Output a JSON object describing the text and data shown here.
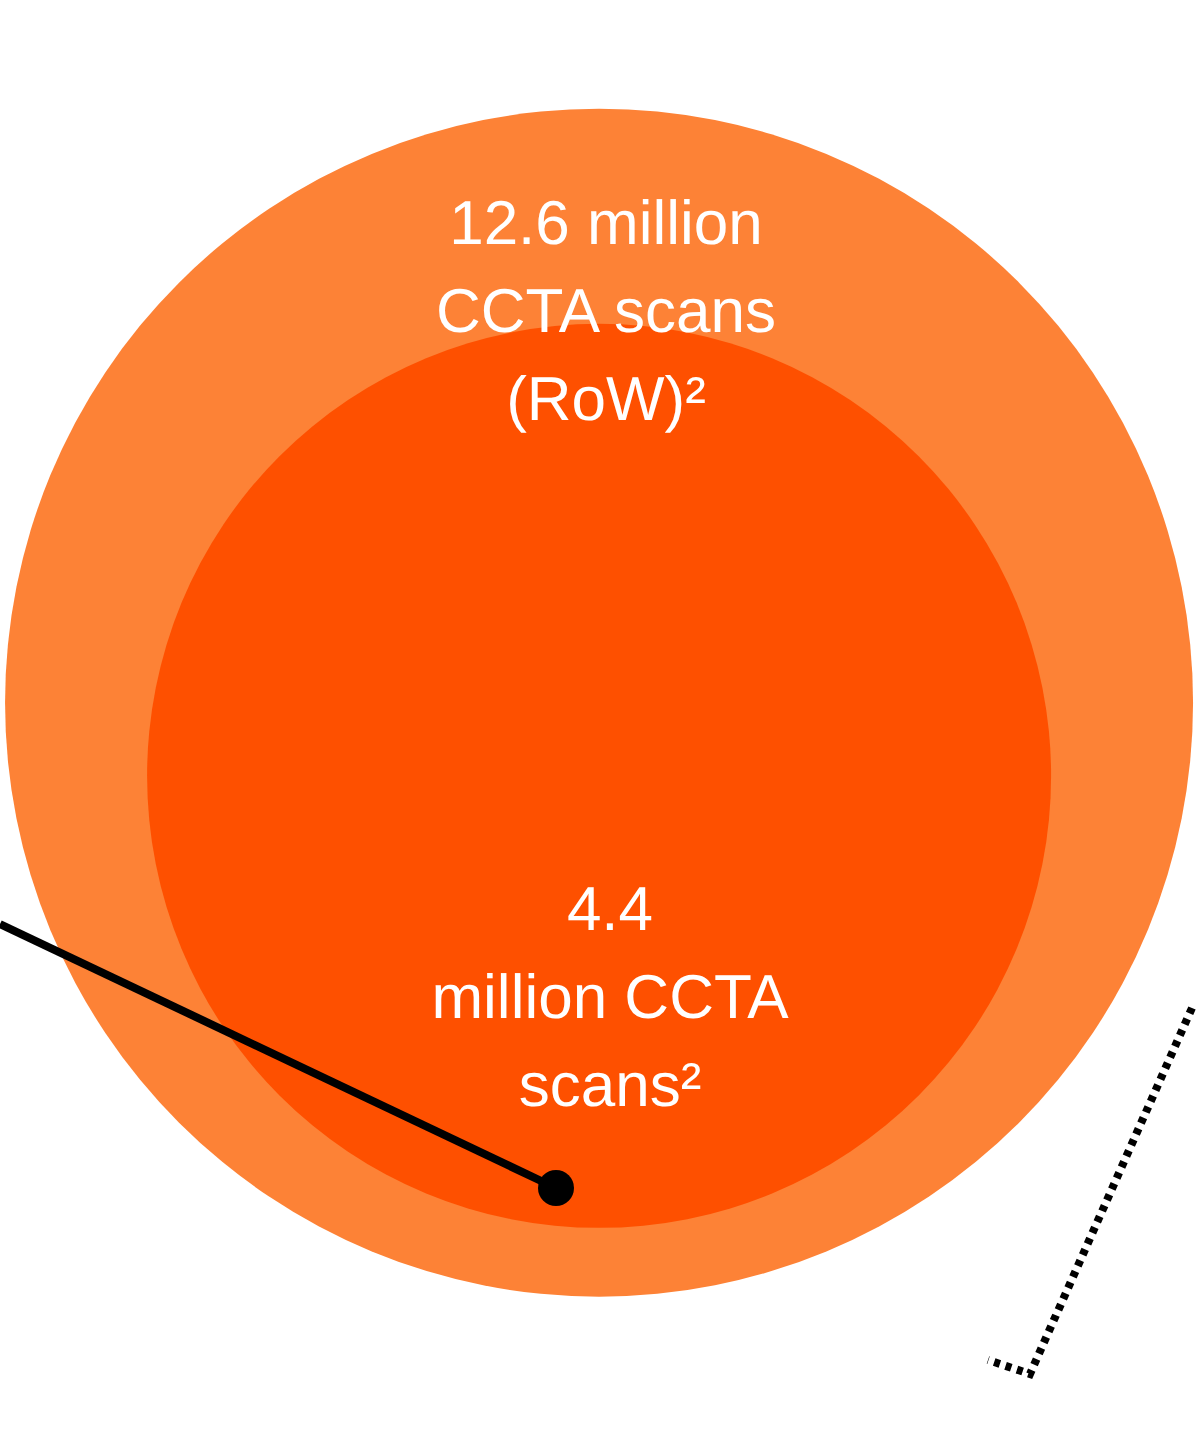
{
  "chart_data": {
    "type": "other",
    "categories": [
      "million\nCCTA scans\n(RoW)²",
      "million CCTA\nscans²"
    ],
    "values": [
      12.6,
      4.4
    ],
    "colors": [
      "#fd8236",
      "#fe5000"
    ],
    "data_labels": true
  }
}
